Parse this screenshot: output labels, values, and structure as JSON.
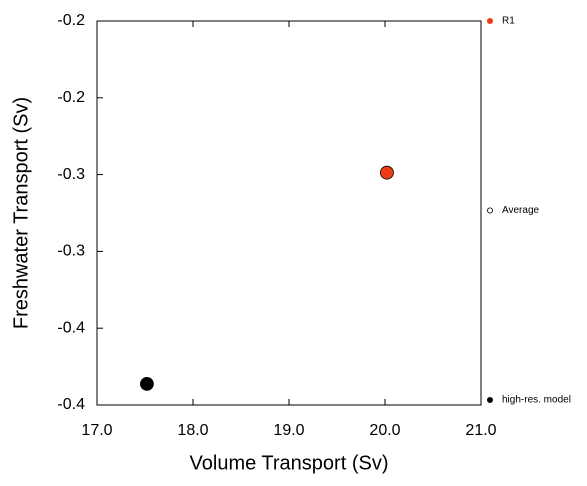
{
  "chart_data": {
    "type": "scatter",
    "x_label": "Volume Transport (Sv)",
    "y_label": "Freshwater Transport (Sv)",
    "xlim": [
      17,
      21
    ],
    "xticks": [
      {
        "value": 17,
        "label": "17.0"
      },
      {
        "value": 18,
        "label": "18.0"
      },
      {
        "value": 19,
        "label": "19.0"
      },
      {
        "value": 20,
        "label": "20.0"
      },
      {
        "value": 21,
        "label": "21.0"
      }
    ],
    "ylim": [
      -0.4,
      -0.2
    ],
    "yticks": [
      {
        "value": -0.2,
        "label": "-0.2"
      },
      {
        "value": -0.24,
        "label": "-0.2"
      },
      {
        "value": -0.28,
        "label": "-0.3"
      },
      {
        "value": -0.32,
        "label": "-0.3"
      },
      {
        "value": -0.36,
        "label": "-0.4"
      },
      {
        "value": -0.4,
        "label": "-0.4"
      }
    ],
    "series": [
      {
        "name": "R1",
        "color": "#f03c14",
        "hollow": false,
        "x": [
          20.02
        ],
        "values": [
          -0.279
        ]
      },
      {
        "name": "Average",
        "color": "#000000",
        "hollow": true,
        "x": [],
        "values": []
      },
      {
        "name": "high-res. model",
        "color": "#000000",
        "hollow": false,
        "x": [
          17.52
        ],
        "values": [
          -0.389
        ]
      }
    ]
  }
}
